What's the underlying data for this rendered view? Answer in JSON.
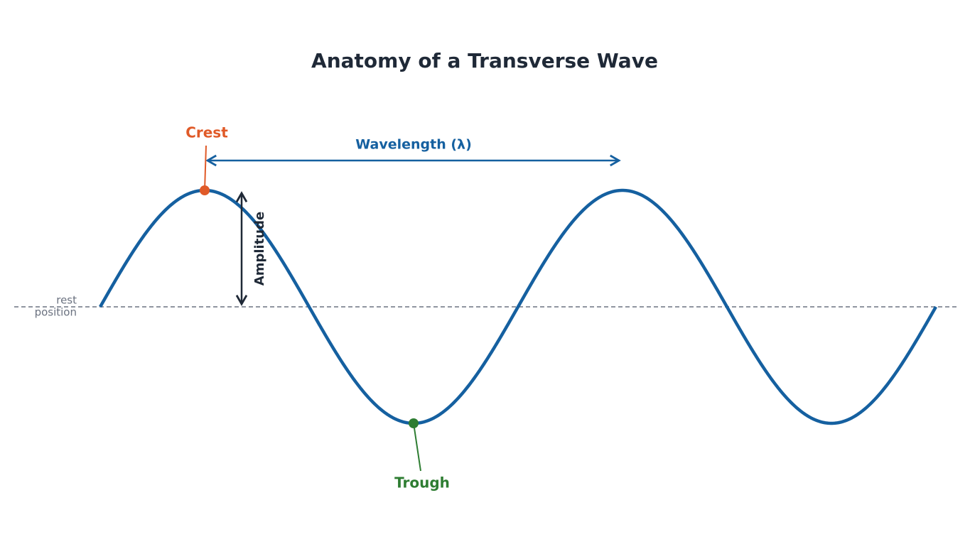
{
  "title": "Anatomy of a Transverse Wave",
  "labels": {
    "crest": "Crest",
    "trough": "Trough",
    "wavelength": "Wavelength (λ)",
    "amplitude": "Amplitude",
    "rest_position": [
      "rest",
      "position"
    ]
  }
}
